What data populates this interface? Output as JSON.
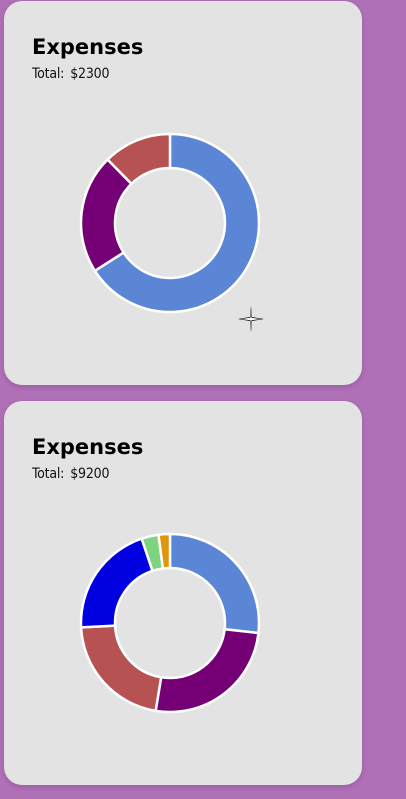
{
  "cards": [
    {
      "title": "Expenses",
      "total_label": "Total:",
      "total_value": "$2300",
      "chart_data": {
        "type": "pie",
        "donut": true,
        "values": [
          64,
          21,
          12
        ],
        "colors": [
          "#5b86d6",
          "#750075",
          "#b65252"
        ]
      }
    },
    {
      "title": "Expenses",
      "total_label": "Total:",
      "total_value": "$9200",
      "chart_data": {
        "type": "pie",
        "donut": true,
        "values": [
          26,
          25,
          21,
          20,
          3,
          2
        ],
        "colors": [
          "#5b86d6",
          "#750075",
          "#b65252",
          "#0000e0",
          "#7ed47e",
          "#e0960c"
        ]
      }
    }
  ]
}
